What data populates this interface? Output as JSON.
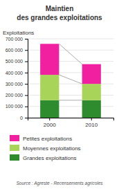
{
  "chart_data": {
    "type": "bar",
    "stacked": true,
    "title": "Maintien",
    "subtitle": "des grandes exploitations",
    "ylabel": "Exploitations",
    "categories": [
      "2000",
      "2010"
    ],
    "series": [
      {
        "name": "Grandes exploitations",
        "color": "#2e8b2e",
        "values": [
          155000,
          155000
        ]
      },
      {
        "name": "Moyennes exploitations",
        "color": "#a8d45a",
        "values": [
          225000,
          145000
        ]
      },
      {
        "name": "Petites exploitations",
        "color": "#f020a0",
        "values": [
          275000,
          175000
        ]
      }
    ],
    "ylim": [
      0,
      700000
    ],
    "yticks": [
      0,
      {
        "value": 100000,
        "label": "100 000"
      },
      {
        "value": 200000,
        "label": "200 000"
      },
      {
        "value": 300000,
        "label": "300 000"
      },
      {
        "value": 400000,
        "label": "400 000"
      },
      {
        "value": 500000,
        "label": "500 000"
      },
      {
        "value": 600000,
        "label": "600 000"
      },
      {
        "value": 700000,
        "label": "700 000"
      }
    ],
    "annotations": [
      "Source : Agreste - Recensements agricoles"
    ]
  }
}
